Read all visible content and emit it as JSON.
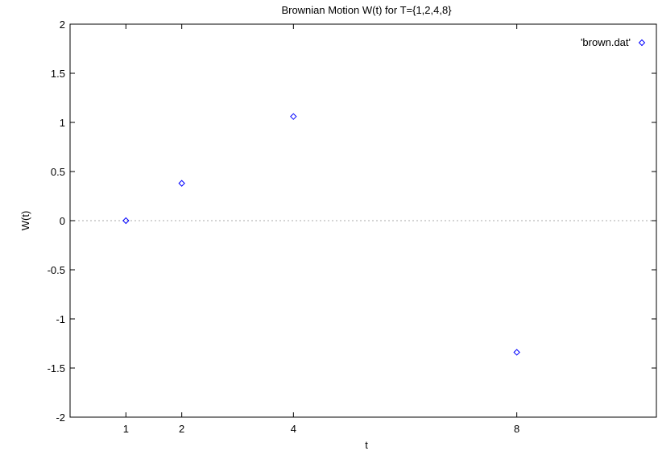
{
  "chart_data": {
    "type": "scatter",
    "title": "Brownian Motion W(t) for T={1,2,4,8}",
    "xlabel": "t",
    "ylabel": "W(t)",
    "xlim": [
      0,
      10.5
    ],
    "ylim": [
      -2,
      2
    ],
    "xticks": [
      1,
      2,
      4,
      8
    ],
    "xtick_labels": [
      "1",
      "2",
      "4",
      "8"
    ],
    "yticks": [
      -2,
      -1.5,
      -1,
      -0.5,
      0,
      0.5,
      1,
      1.5,
      2
    ],
    "ytick_labels": [
      "-2",
      "-1.5",
      "-1",
      "-0.5",
      "0",
      "0.5",
      "1",
      "1.5",
      "2"
    ],
    "zero_line": true,
    "grid": false,
    "legend_position": "top-right",
    "series": [
      {
        "name": "'brown.dat'",
        "color": "#0000ff",
        "marker": "diamond",
        "x": [
          1,
          2,
          4,
          8
        ],
        "y": [
          0,
          0.38,
          1.06,
          -1.34
        ]
      }
    ]
  }
}
